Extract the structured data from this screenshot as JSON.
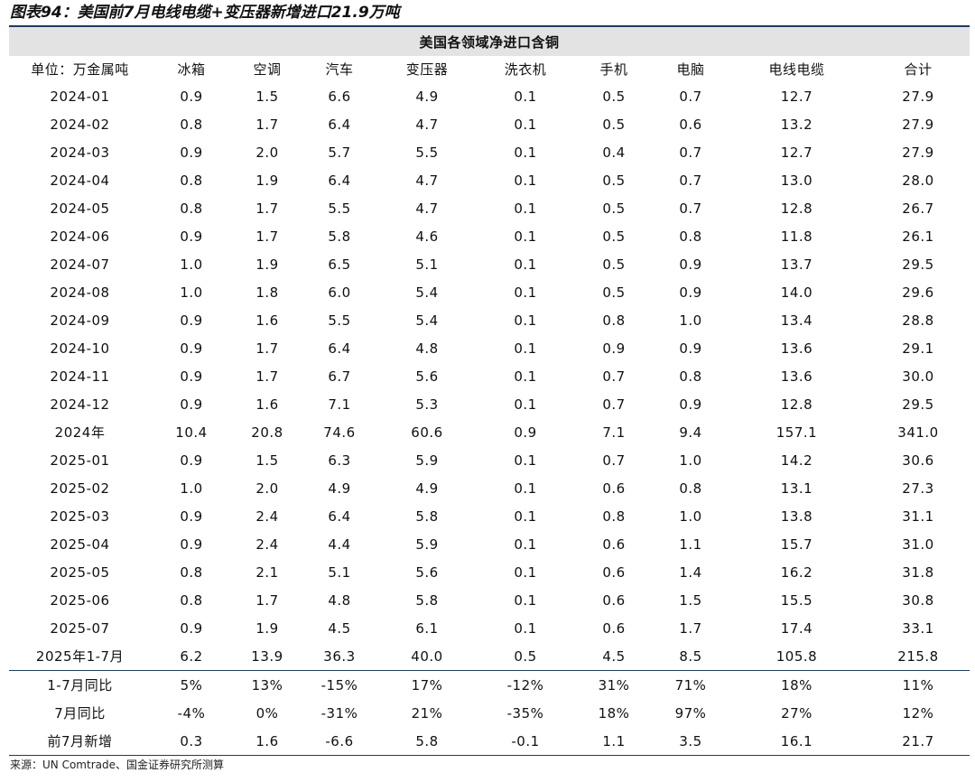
{
  "figure_title": "图表94：美国前7月电线电缆+变压器新增进口21.9万吨",
  "table": {
    "group_header": "美国各领域净进口含铜",
    "columns": [
      "单位：万金属吨",
      "冰箱",
      "空调",
      "汽车",
      "变压器",
      "洗衣机",
      "手机",
      "电脑",
      "电线电缆",
      "合计"
    ],
    "rows": [
      [
        "2024-01",
        "0.9",
        "1.5",
        "6.6",
        "4.9",
        "0.1",
        "0.5",
        "0.7",
        "12.7",
        "27.9"
      ],
      [
        "2024-02",
        "0.8",
        "1.7",
        "6.4",
        "4.7",
        "0.1",
        "0.5",
        "0.6",
        "13.2",
        "27.9"
      ],
      [
        "2024-03",
        "0.9",
        "2.0",
        "5.7",
        "5.5",
        "0.1",
        "0.4",
        "0.7",
        "12.7",
        "27.9"
      ],
      [
        "2024-04",
        "0.8",
        "1.9",
        "6.4",
        "4.7",
        "0.1",
        "0.5",
        "0.7",
        "13.0",
        "28.0"
      ],
      [
        "2024-05",
        "0.8",
        "1.7",
        "5.5",
        "4.7",
        "0.1",
        "0.5",
        "0.7",
        "12.8",
        "26.7"
      ],
      [
        "2024-06",
        "0.9",
        "1.7",
        "5.8",
        "4.6",
        "0.1",
        "0.5",
        "0.8",
        "11.8",
        "26.1"
      ],
      [
        "2024-07",
        "1.0",
        "1.9",
        "6.5",
        "5.1",
        "0.1",
        "0.5",
        "0.9",
        "13.7",
        "29.5"
      ],
      [
        "2024-08",
        "1.0",
        "1.8",
        "6.0",
        "5.4",
        "0.1",
        "0.5",
        "0.9",
        "14.0",
        "29.6"
      ],
      [
        "2024-09",
        "0.9",
        "1.6",
        "5.5",
        "5.4",
        "0.1",
        "0.8",
        "1.0",
        "13.4",
        "28.8"
      ],
      [
        "2024-10",
        "0.9",
        "1.7",
        "6.4",
        "4.8",
        "0.1",
        "0.9",
        "0.9",
        "13.6",
        "29.1"
      ],
      [
        "2024-11",
        "0.9",
        "1.7",
        "6.7",
        "5.6",
        "0.1",
        "0.7",
        "0.8",
        "13.6",
        "30.0"
      ],
      [
        "2024-12",
        "0.9",
        "1.6",
        "7.1",
        "5.3",
        "0.1",
        "0.7",
        "0.9",
        "12.8",
        "29.5"
      ],
      [
        "2024年",
        "10.4",
        "20.8",
        "74.6",
        "60.6",
        "0.9",
        "7.1",
        "9.4",
        "157.1",
        "341.0"
      ],
      [
        "2025-01",
        "0.9",
        "1.5",
        "6.3",
        "5.9",
        "0.1",
        "0.7",
        "1.0",
        "14.2",
        "30.6"
      ],
      [
        "2025-02",
        "1.0",
        "2.0",
        "4.9",
        "4.9",
        "0.1",
        "0.6",
        "0.8",
        "13.1",
        "27.3"
      ],
      [
        "2025-03",
        "0.9",
        "2.4",
        "6.4",
        "5.8",
        "0.1",
        "0.8",
        "1.0",
        "13.8",
        "31.1"
      ],
      [
        "2025-04",
        "0.9",
        "2.4",
        "4.4",
        "5.9",
        "0.1",
        "0.6",
        "1.1",
        "15.7",
        "31.0"
      ],
      [
        "2025-05",
        "0.8",
        "2.1",
        "5.1",
        "5.6",
        "0.1",
        "0.6",
        "1.4",
        "16.2",
        "31.8"
      ],
      [
        "2025-06",
        "0.8",
        "1.7",
        "4.8",
        "5.8",
        "0.1",
        "0.6",
        "1.5",
        "15.5",
        "30.8"
      ],
      [
        "2025-07",
        "0.9",
        "1.9",
        "4.5",
        "6.1",
        "0.1",
        "0.6",
        "1.7",
        "17.4",
        "33.1"
      ],
      [
        "2025年1-7月",
        "6.2",
        "13.9",
        "36.3",
        "40.0",
        "0.5",
        "4.5",
        "8.5",
        "105.8",
        "215.8"
      ]
    ],
    "summary_rows": [
      [
        "1-7月同比",
        "5%",
        "13%",
        "-15%",
        "17%",
        "-12%",
        "31%",
        "71%",
        "18%",
        "11%"
      ],
      [
        "7月同比",
        "-4%",
        "0%",
        "-31%",
        "21%",
        "-35%",
        "18%",
        "97%",
        "27%",
        "12%"
      ],
      [
        "前7月新增",
        "0.3",
        "1.6",
        "-6.6",
        "5.8",
        "-0.1",
        "1.1",
        "3.5",
        "16.1",
        "21.7"
      ]
    ]
  },
  "source_note": "来源：UN Comtrade、国金证券研究所测算",
  "colors": {
    "rule": "#1f3a5f",
    "band_background": "#e3e3e3"
  }
}
